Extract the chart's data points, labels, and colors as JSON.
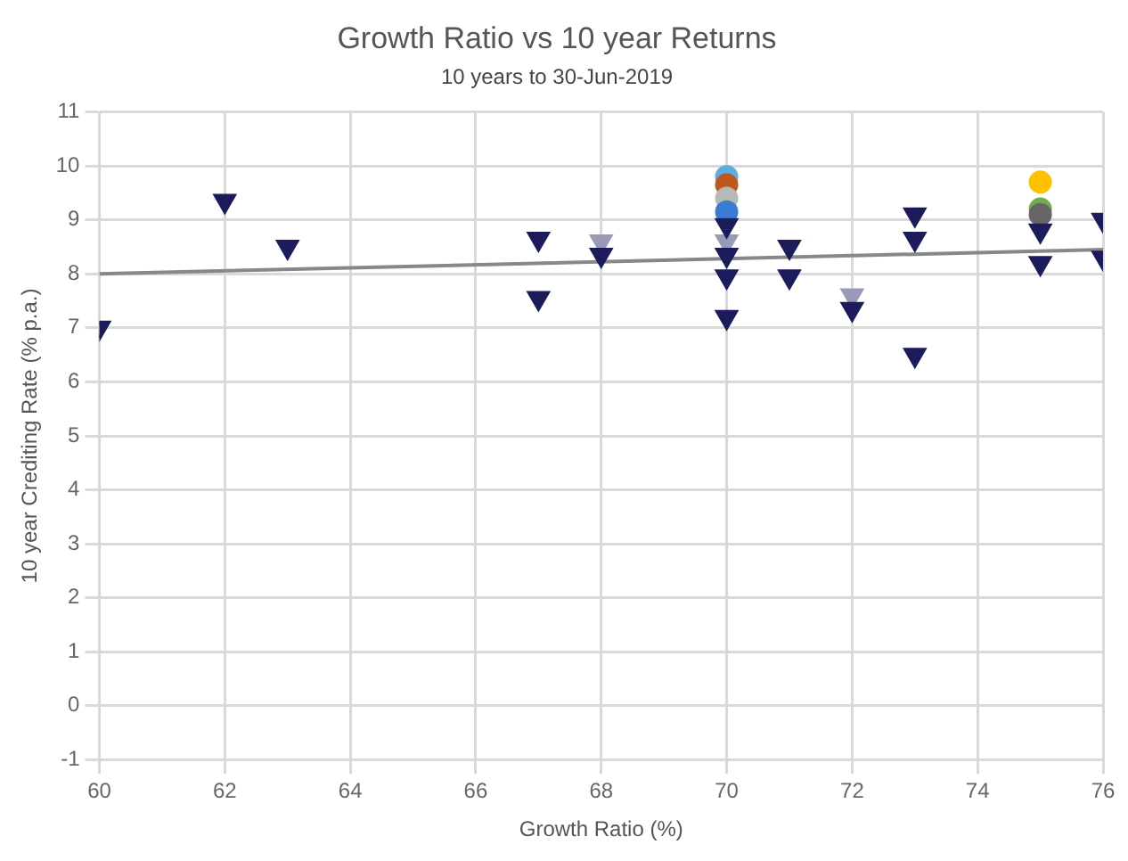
{
  "chart_data": {
    "type": "scatter",
    "title": "Growth Ratio vs 10 year Returns",
    "subtitle": "10 years to 30-Jun-2019",
    "xlabel": "Growth Ratio (%)",
    "ylabel": "10 year Crediting Rate (% p.a.)",
    "xlim": [
      60,
      76
    ],
    "xticks": [
      60,
      62,
      64,
      66,
      68,
      70,
      72,
      74,
      76
    ],
    "ylim": [
      -1,
      11
    ],
    "yticks": [
      -1,
      0,
      1,
      2,
      3,
      4,
      5,
      6,
      7,
      8,
      9,
      10,
      11
    ],
    "grid": true,
    "legend": false,
    "series": [
      {
        "type": "scatter",
        "marker": "triangle",
        "color": "#1c1c5c",
        "x": [
          60,
          62,
          63,
          67,
          67,
          68,
          70,
          70,
          70,
          70,
          71,
          71,
          72,
          73,
          73,
          73,
          75,
          75,
          76,
          76
        ],
        "values": [
          7.0,
          9.35,
          8.5,
          8.65,
          7.55,
          8.35,
          8.9,
          8.35,
          7.95,
          7.2,
          8.5,
          7.95,
          7.35,
          9.1,
          8.65,
          6.5,
          8.8,
          8.2,
          9.0,
          8.3
        ]
      },
      {
        "type": "scatter",
        "marker": "triangle",
        "color": "#9a9ab8",
        "x": [
          68,
          70,
          72
        ],
        "values": [
          8.6,
          8.6,
          7.6
        ]
      },
      {
        "type": "scatter",
        "marker": "circle",
        "colors": [
          "#5dade2",
          "#c0571f",
          "#b8b8b8",
          "#3a7bd5",
          "#ffc000",
          "#70ad47",
          "#666666"
        ],
        "x": [
          70,
          70,
          70,
          70,
          75,
          75,
          75
        ],
        "values": [
          9.8,
          9.65,
          9.4,
          9.15,
          9.7,
          9.2,
          9.1
        ]
      },
      {
        "type": "line",
        "marker": "none",
        "color": "#888888",
        "x": [
          60,
          76
        ],
        "values": [
          8.0,
          8.45
        ]
      }
    ]
  }
}
